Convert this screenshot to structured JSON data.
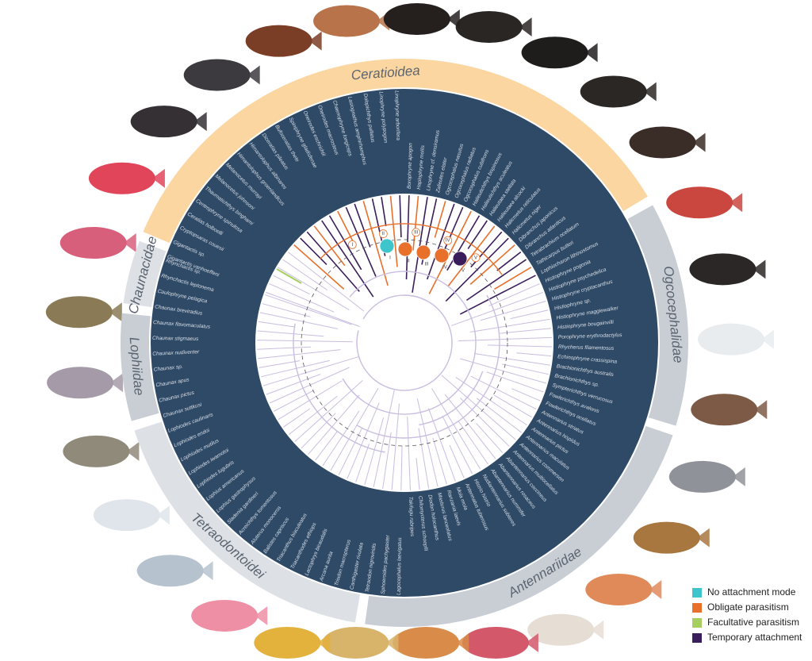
{
  "clades": [
    {
      "label": "Ceratioidea",
      "color": "#fbd6a1",
      "from": -157,
      "to": -31
    },
    {
      "label": "Ogcocephalidae",
      "color": "#c9ced5",
      "from": -29,
      "to": 17
    },
    {
      "label": "Antennariidae",
      "color": "#c9ced5",
      "from": 19,
      "to": 98
    },
    {
      "label": "Tetraodontoidei",
      "color": "#dde1e6",
      "from": 100,
      "to": 162
    },
    {
      "label": "Lophiidae",
      "color": "#c9ced5",
      "from": 164,
      "to": 186
    },
    {
      "label": "Chaunacidae",
      "color": "#dde1e6",
      "from": 188,
      "to": 201
    }
  ],
  "species": [
    "Gigantactis vanhoeffeni",
    "Gigantactis sp.",
    "Cryptopsaras couesii",
    "Ceratias holboelli",
    "Centrophryne spinulosa",
    "Thaumatichthys binghami",
    "Melanocetus johnsoni",
    "Melanocetus murrayi",
    "Himantolophus groenlandicus",
    "Himantolophus albinares",
    "Diceratias pileatus",
    "Bufoceratias thele",
    "Spiniphryne gladisfenae",
    "Oneirodes eschrichtii",
    "Oneirodes macrosteus",
    "Chaenophryne longiceps",
    "Lasiognathus amphirhamphus",
    "Dolopichthys pullatus",
    "Linophryne polypogon",
    "Linophryne arborifera",
    "Borophryne apogon",
    "Haplophryne mollis",
    "Linophryne cf. densiramus",
    "Zalieutes elater",
    "Ogcocephalus nasutus",
    "Ogcocephalus radiatus",
    "Ogcocephalus cubifrons",
    "Halieutichthys bispinosus",
    "Halieutichthys aculeatus",
    "Halieutaea stellata",
    "Halieutaea alcocki",
    "Halicmetus reticulatus",
    "Halicmetus niger",
    "Dibranchus japonicus",
    "Dibranchus atlanticus",
    "Tetrabrachium ocellatum",
    "Tathicarpus butleri",
    "Lophiocharon lithinostomus",
    "Histiophryne pogonia",
    "Histiophryne psychedelica",
    "Histiophryne cryptacanthus",
    "Histiophryne sp.",
    "Histiophryne maggiewalker",
    "Histiophryne bougainvilli",
    "Porophryne erythrodactylus",
    "Rhycherus filamentosus",
    "Echinophryne crassispina",
    "Brachionichthys australis",
    "Brachionichthys sp.",
    "Sympterichthys verrucosus",
    "Fowlerichthys avalonis",
    "Fowlerichthys ocellatus",
    "Antennarius striatus",
    "Antennarius hispidus",
    "Antennarius pictus",
    "Antennarius maculatus",
    "Antennarius commerson",
    "Antennarius multiocellatus",
    "Abantennarius coccineus",
    "Abantennarius rosaceus",
    "Abantennarius nummifer",
    "Nudiantennarius subteres",
    "Histrio histrio",
    "Antennatus tuberosus",
    "Mola mola",
    "Ranzania laevis",
    "Masturus lanceolatus",
    "Diodon holocanthus",
    "Chilomycterus schoepfii",
    "Takifugu rubripes",
    "Lagocephalus laevigatus",
    "Sphoeroides pachygaster",
    "Tetraodon nigroviridis",
    "Canthigaster rivulata",
    "Triodon macropterus",
    "Arcana aurita",
    "Lactophrys bicaudalis",
    "Triacanthodes ethiops",
    "Triacanthus biaculeatus",
    "Balistes capriscus",
    "Aluterus monoceros",
    "Acreichthys tomentosus",
    "Sladenia gardineri",
    "Lophius gastrophysus",
    "Lophius americanus",
    "Lophiodes lugubris",
    "Lophiodes iwamotoi",
    "Lophiodes mutilus",
    "Lophiodes endoi",
    "Lophiodes caulinaris",
    "Chaunax suttkusi",
    "Chaunax pictus",
    "Chaunax apus",
    "Chaunax sp.",
    "Chaunax nudiventer",
    "Chaunax stigmaeus",
    "Chaunax flavomaculatus",
    "Chaunax breviradius",
    "Caulophryne pelagica",
    "Rhynchactis leptonema",
    "Rhynchactis sp."
  ],
  "nodes": [
    "I",
    "II",
    "III",
    "IV",
    "V"
  ],
  "legend": [
    {
      "label": "No attachment mode",
      "color": "#3ec5cc"
    },
    {
      "label": "Obligate parasitism",
      "color": "#e8702b"
    },
    {
      "label": "Facultative parasitism",
      "color": "#a7cf5d"
    },
    {
      "label": "Temporary attachment",
      "color": "#3a1e5c"
    }
  ]
}
